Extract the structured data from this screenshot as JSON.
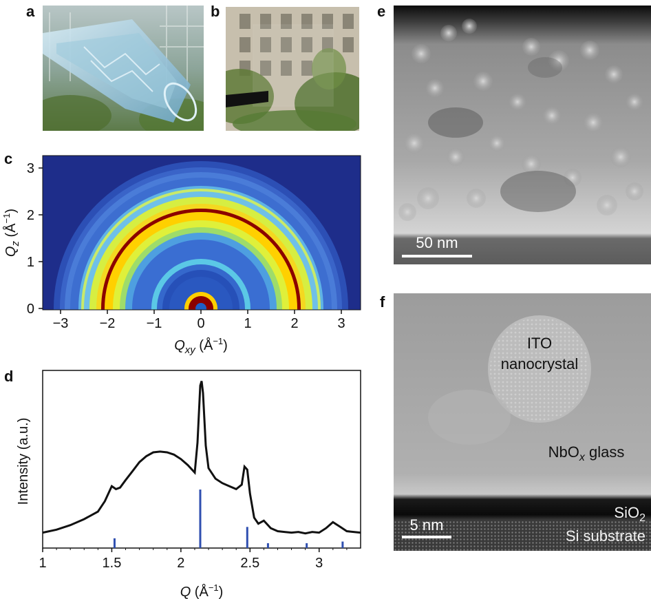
{
  "panels": {
    "a": {
      "letter": "a"
    },
    "b": {
      "letter": "b"
    },
    "c": {
      "letter": "c",
      "x_ticks": [
        "−3",
        "−2",
        "−1",
        "0",
        "1",
        "2",
        "3"
      ],
      "y_ticks": [
        "0",
        "1",
        "2",
        "3"
      ],
      "xlabel_main": "Q",
      "xlabel_sub": "xy",
      "xlabel_unit": " (Å",
      "xlabel_exp": "−1",
      "xlabel_close": ")",
      "ylabel_main": "Q",
      "ylabel_sub": "z",
      "ylabel_unit": " (Å",
      "ylabel_exp": "−1",
      "ylabel_close": ")"
    },
    "d": {
      "letter": "d",
      "x_ticks": [
        "1",
        "1.5",
        "2",
        "2.5",
        "3"
      ],
      "xlabel_main": "Q",
      "xlabel_unit": " (Å",
      "xlabel_exp": "−1",
      "xlabel_close": ")",
      "ylabel": "Intensity (a.u.)"
    },
    "e": {
      "letter": "e",
      "scale_bar": "50 nm"
    },
    "f": {
      "letter": "f",
      "scale_bar": "5 nm",
      "label_ito_1": "ITO",
      "label_ito_2": "nanocrystal",
      "label_nbox_main": "NbO",
      "label_nbox_sub": "x",
      "label_nbox_rest": " glass",
      "label_sio2_main": "SiO",
      "label_sio2_sub": "2",
      "label_si": "Si substrate"
    }
  },
  "chart_data": [
    {
      "type": "heatmap",
      "panel": "c",
      "xlim": [
        -3.5,
        3.3
      ],
      "ylim": [
        0,
        3.3
      ],
      "rings_q": [
        0.95,
        2.08,
        2.48,
        3.1
      ],
      "colormap": [
        "#1a237e",
        "#1e5fc8",
        "#2ec9e0",
        "#d8ef3a",
        "#ffd500",
        "#8b0000"
      ]
    },
    {
      "type": "line",
      "panel": "d",
      "xlim": [
        1.0,
        3.3
      ],
      "x": [
        1.0,
        1.1,
        1.2,
        1.3,
        1.4,
        1.45,
        1.5,
        1.53,
        1.56,
        1.6,
        1.65,
        1.7,
        1.75,
        1.8,
        1.85,
        1.9,
        1.95,
        2.0,
        2.05,
        2.1,
        2.12,
        2.14,
        2.15,
        2.16,
        2.18,
        2.2,
        2.25,
        2.3,
        2.35,
        2.4,
        2.44,
        2.46,
        2.48,
        2.5,
        2.53,
        2.56,
        2.6,
        2.65,
        2.7,
        2.75,
        2.8,
        2.85,
        2.9,
        2.95,
        3.0,
        3.05,
        3.1,
        3.15,
        3.2,
        3.25,
        3.3
      ],
      "y": [
        0.02,
        0.04,
        0.07,
        0.11,
        0.16,
        0.23,
        0.33,
        0.31,
        0.32,
        0.37,
        0.43,
        0.49,
        0.53,
        0.555,
        0.56,
        0.555,
        0.54,
        0.51,
        0.47,
        0.42,
        0.62,
        1.0,
        1.03,
        0.95,
        0.6,
        0.45,
        0.38,
        0.35,
        0.33,
        0.31,
        0.34,
        0.46,
        0.44,
        0.28,
        0.12,
        0.08,
        0.1,
        0.05,
        0.03,
        0.025,
        0.02,
        0.025,
        0.015,
        0.025,
        0.02,
        0.05,
        0.09,
        0.06,
        0.03,
        0.025,
        0.02
      ],
      "reference_sticks": {
        "x": [
          1.52,
          2.14,
          2.48,
          2.63,
          2.91,
          3.17
        ],
        "y": [
          0.06,
          0.36,
          0.13,
          0.03,
          0.03,
          0.04
        ]
      },
      "series_color": "#111111",
      "reference_color": "#2f4fb0"
    }
  ]
}
